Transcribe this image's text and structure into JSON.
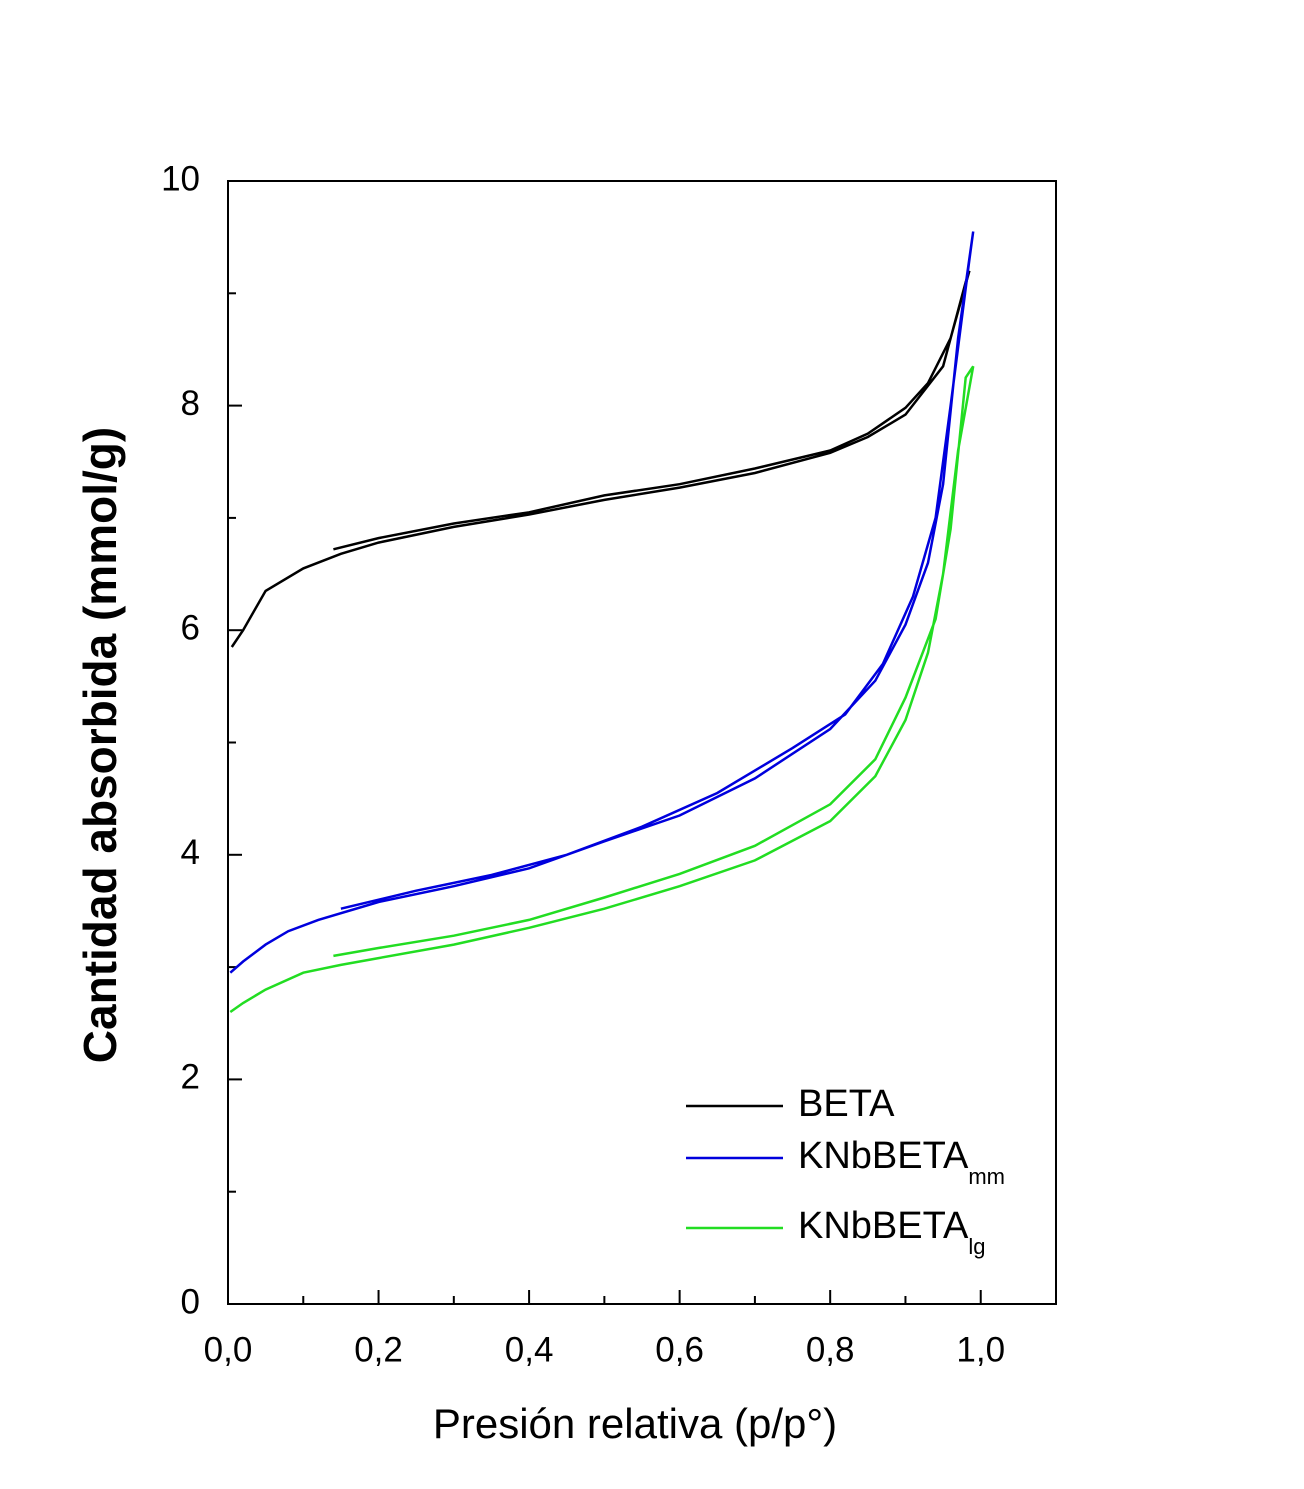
{
  "chart_data": {
    "type": "line",
    "x_label": "Presión relativa (p/p°)",
    "y_label": "Cantidad absorbida (mmol/g)",
    "xlim": [
      0,
      1.1
    ],
    "ylim": [
      0,
      10
    ],
    "xticks": [
      {
        "value": 0,
        "label": "0,0"
      },
      {
        "value": 0.2,
        "label": "0,2"
      },
      {
        "value": 0.4,
        "label": "0,4"
      },
      {
        "value": 0.6,
        "label": "0,6"
      },
      {
        "value": 0.8,
        "label": "0,8"
      },
      {
        "value": 1.0,
        "label": "1,0"
      }
    ],
    "x_minor_ticks": [
      0.1,
      0.3,
      0.5,
      0.7,
      0.9
    ],
    "yticks": [
      0,
      2,
      4,
      6,
      8,
      10
    ],
    "y_minor_ticks": [
      1,
      3,
      5,
      7,
      9
    ],
    "legend": "lower right",
    "series": [
      {
        "name": "BETA",
        "color": "#000000",
        "x": [
          0.005,
          0.02,
          0.05,
          0.1,
          0.15,
          0.2,
          0.3,
          0.4,
          0.5,
          0.6,
          0.7,
          0.8,
          0.85,
          0.9,
          0.95,
          0.98,
          0.985,
          0.96,
          0.93,
          0.9,
          0.85,
          0.8,
          0.7,
          0.6,
          0.5,
          0.4,
          0.3,
          0.2,
          0.14
        ],
        "values": [
          5.85,
          6.0,
          6.35,
          6.55,
          6.68,
          6.78,
          6.92,
          7.03,
          7.16,
          7.27,
          7.4,
          7.58,
          7.72,
          7.92,
          8.35,
          9.1,
          9.2,
          8.6,
          8.2,
          7.98,
          7.75,
          7.6,
          7.44,
          7.3,
          7.2,
          7.05,
          6.95,
          6.82,
          6.72
        ]
      },
      {
        "name": "KNbBETA",
        "subscript": "mm",
        "color": "#0000dd",
        "x": [
          0.003,
          0.02,
          0.05,
          0.08,
          0.12,
          0.2,
          0.3,
          0.4,
          0.5,
          0.6,
          0.7,
          0.8,
          0.86,
          0.9,
          0.93,
          0.95,
          0.97,
          0.99,
          0.985,
          0.96,
          0.94,
          0.91,
          0.87,
          0.82,
          0.75,
          0.65,
          0.55,
          0.45,
          0.35,
          0.25,
          0.15
        ],
        "values": [
          2.95,
          3.05,
          3.2,
          3.32,
          3.42,
          3.58,
          3.72,
          3.88,
          4.12,
          4.35,
          4.68,
          5.12,
          5.55,
          6.05,
          6.6,
          7.3,
          8.6,
          9.55,
          9.3,
          8.0,
          7.0,
          6.3,
          5.7,
          5.25,
          4.95,
          4.55,
          4.25,
          4.0,
          3.82,
          3.68,
          3.52
        ]
      },
      {
        "name": "KNbBETA",
        "subscript": "lg",
        "color": "#22dd22",
        "x": [
          0.003,
          0.02,
          0.05,
          0.1,
          0.15,
          0.2,
          0.3,
          0.4,
          0.5,
          0.6,
          0.7,
          0.8,
          0.86,
          0.9,
          0.93,
          0.95,
          0.97,
          0.99,
          0.98,
          0.96,
          0.94,
          0.9,
          0.86,
          0.8,
          0.7,
          0.6,
          0.5,
          0.4,
          0.3,
          0.2,
          0.14
        ],
        "values": [
          2.6,
          2.68,
          2.8,
          2.95,
          3.02,
          3.08,
          3.2,
          3.35,
          3.52,
          3.72,
          3.95,
          4.3,
          4.7,
          5.2,
          5.8,
          6.5,
          7.6,
          8.35,
          8.25,
          6.9,
          6.1,
          5.4,
          4.85,
          4.45,
          4.08,
          3.83,
          3.62,
          3.42,
          3.28,
          3.17,
          3.1
        ]
      }
    ]
  }
}
